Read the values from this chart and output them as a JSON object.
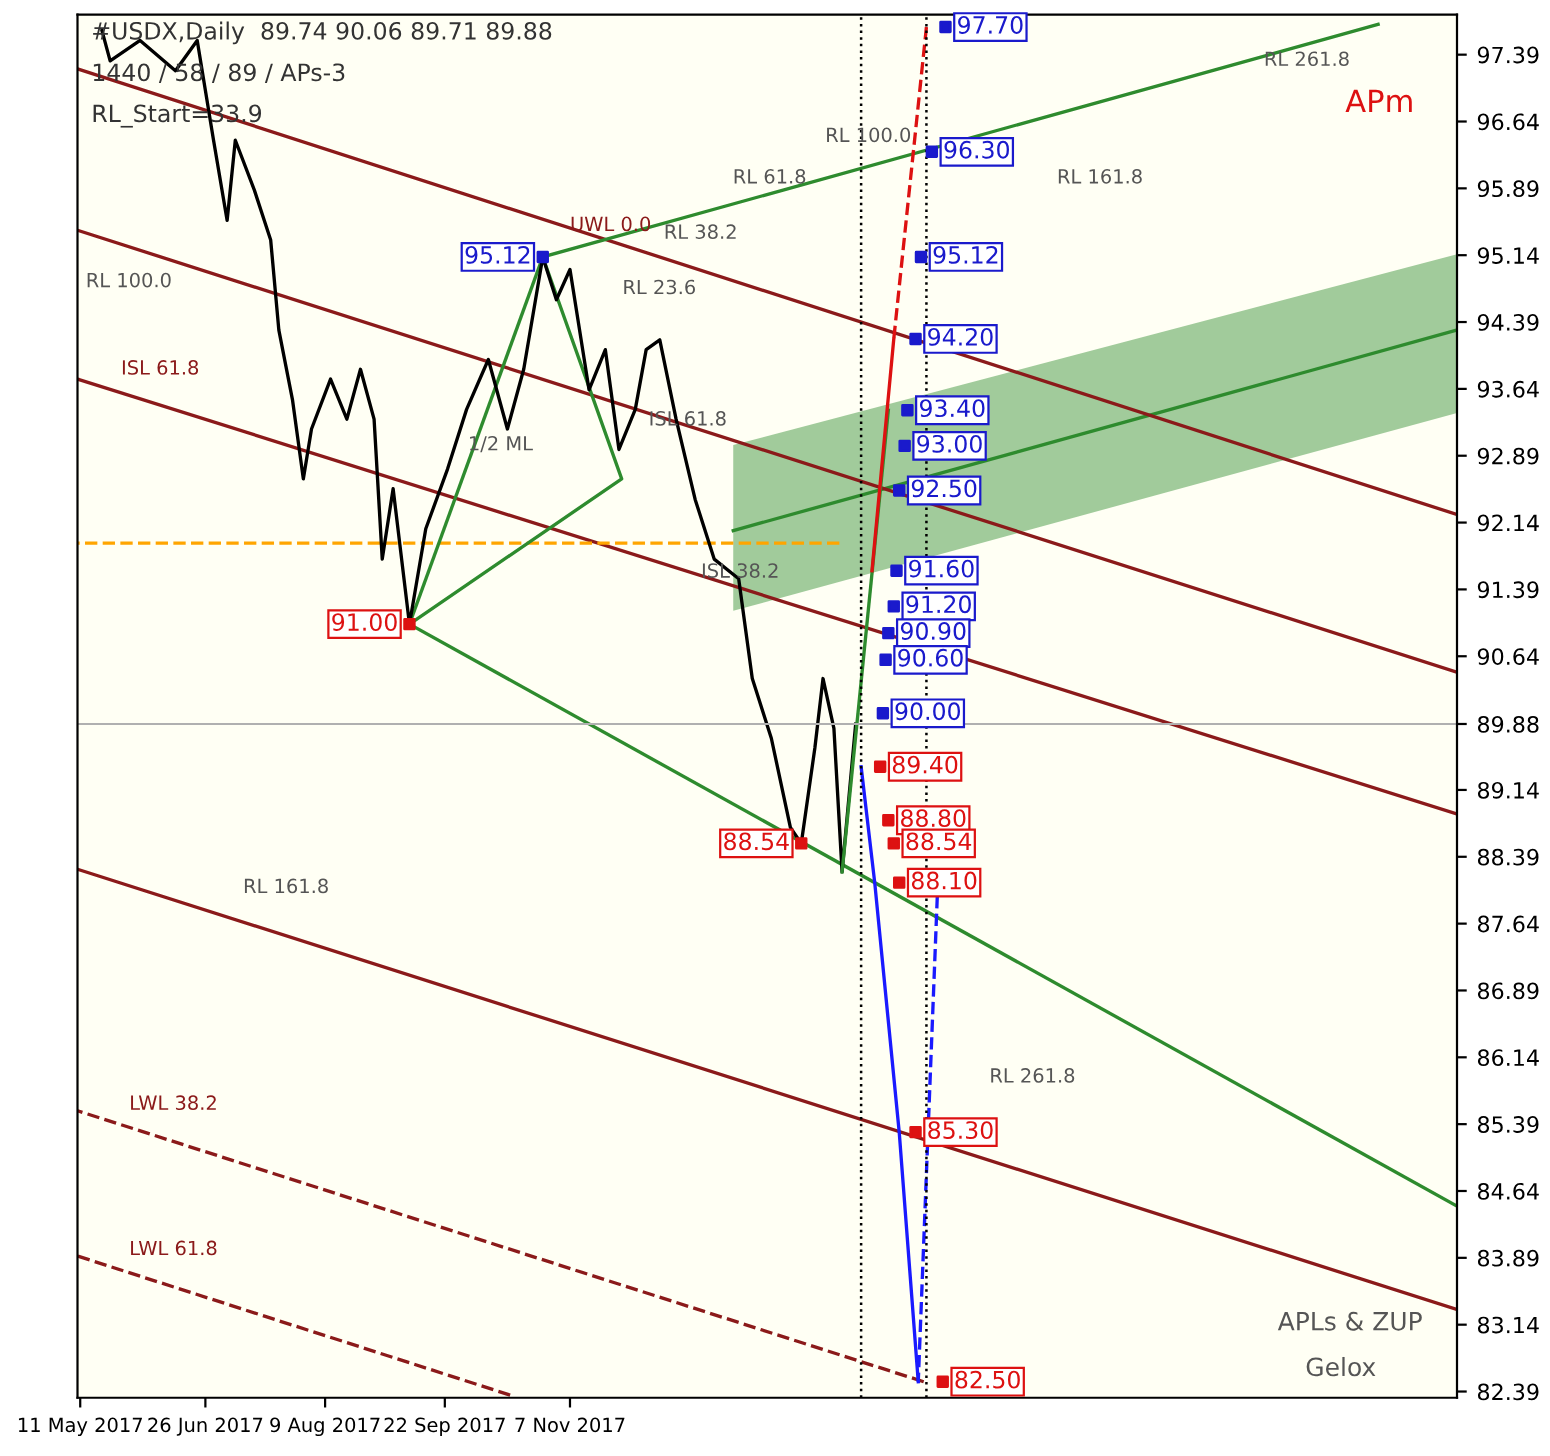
{
  "chart_data": {
    "type": "line",
    "title": "#USDX,Daily  89.74 90.06 89.71 89.88",
    "xlim": [
      "2017-05-10",
      "2018-09-29"
    ],
    "xticks": [
      {
        "value": "2017-05-11",
        "label": "11 May 2017"
      },
      {
        "value": "2017-06-26",
        "label": "26 Jun 2017"
      },
      {
        "value": "2017-08-09",
        "label": "9 Aug 2017"
      },
      {
        "value": "2017-09-22",
        "label": "22 Sep 2017"
      },
      {
        "value": "2017-11-07",
        "label": "7 Nov 2017"
      }
    ],
    "ylim": [
      82.32,
      97.84
    ],
    "yticks": [
      82.39,
      83.14,
      83.89,
      84.64,
      85.39,
      86.14,
      86.89,
      87.64,
      88.39,
      89.14,
      89.88,
      90.64,
      91.39,
      92.14,
      92.89,
      93.64,
      94.39,
      95.14,
      95.89,
      96.64,
      97.39
    ],
    "grid": false,
    "legend": false,
    "series": [
      {
        "color": "#2e8b2e",
        "x": [
          "2018-01-06",
          "2018-09-29"
        ],
        "values": [
          92.05,
          94.3
        ],
        "lower": [
          91.15,
          93.37
        ],
        "upper": [
          93.01,
          95.15
        ]
      },
      {
        "type": "line",
        "color": "#8b1a1a",
        "line_style": "solid",
        "x": [
          "2017-05-10",
          "2018-09-29"
        ],
        "values": [
          97.23,
          92.23
        ]
      },
      {
        "type": "line",
        "color": "#8b1a1a",
        "line_style": "solid",
        "x": [
          "2017-05-10",
          "2018-09-29"
        ],
        "values": [
          95.42,
          90.46
        ]
      },
      {
        "type": "line",
        "color": "#8b1a1a",
        "line_style": "solid",
        "x": [
          "2017-05-10",
          "2018-09-29"
        ],
        "values": [
          93.75,
          88.87
        ]
      },
      {
        "type": "line",
        "color": "#8b1a1a",
        "line_style": "solid",
        "x": [
          "2017-05-10",
          "2018-09-29"
        ],
        "values": [
          88.25,
          83.31
        ]
      },
      {
        "type": "line",
        "color": "#8b1a1a",
        "line_style": "dashed",
        "x": [
          "2017-05-10",
          "2018-03-17"
        ],
        "values": [
          85.54,
          82.5
        ]
      },
      {
        "type": "line",
        "color": "#8b1a1a",
        "line_style": "dashed",
        "x": [
          "2017-05-10",
          "2017-10-16"
        ],
        "values": [
          83.91,
          82.35
        ]
      },
      {
        "type": "line",
        "color": "#ffa500",
        "line_style": "dashed",
        "x": [
          "2017-05-10",
          "2018-02-14"
        ],
        "values": [
          91.91,
          91.91
        ]
      },
      {
        "type": "line",
        "color": "#2e8b2e",
        "line_style": "solid",
        "x": [
          "2017-09-09",
          "2018-09-29"
        ],
        "values": [
          91.0,
          84.47
        ]
      },
      {
        "type": "line",
        "color": "#2e8b2e",
        "line_style": "solid",
        "x": [
          "2017-10-28",
          "2018-08-31"
        ],
        "values": [
          95.12,
          97.73
        ]
      },
      {
        "type": "line",
        "color": "#2e8b2e",
        "line_style": "solid",
        "x": [
          "2017-09-09",
          "2017-10-28"
        ],
        "values": [
          91.0,
          95.12
        ]
      },
      {
        "type": "line",
        "color": "#2e8b2e",
        "line_style": "solid",
        "x": [
          "2017-10-28",
          "2017-11-26",
          "2017-09-09"
        ],
        "values": [
          95.12,
          92.63,
          91.0
        ]
      },
      {
        "type": "line",
        "color": "#000000",
        "line_style": "solid",
        "x": [
          "2017-05-19",
          "2017-05-22",
          "2017-06-02",
          "2017-06-15",
          "2017-06-23",
          "2017-06-29",
          "2017-07-04",
          "2017-07-07",
          "2017-07-14",
          "2017-07-20",
          "2017-07-23",
          "2017-07-28",
          "2017-08-01",
          "2017-08-04",
          "2017-08-11",
          "2017-08-17",
          "2017-08-22",
          "2017-08-27",
          "2017-08-30",
          "2017-09-03",
          "2017-09-09",
          "2017-09-15",
          "2017-09-23",
          "2017-09-30",
          "2017-10-08",
          "2017-10-15",
          "2017-10-21",
          "2017-10-28",
          "2017-11-02",
          "2017-11-07",
          "2017-11-14",
          "2017-11-20",
          "2017-11-25",
          "2017-12-01",
          "2017-12-05",
          "2017-12-10",
          "2017-12-16",
          "2017-12-23",
          "2017-12-30",
          "2018-01-08",
          "2018-01-13",
          "2018-01-20",
          "2018-01-27",
          "2018-01-31",
          "2018-02-05",
          "2018-02-08",
          "2018-02-12",
          "2018-02-15",
          "2018-02-20"
        ],
        "values": [
          97.66,
          97.32,
          97.55,
          97.21,
          97.55,
          96.43,
          95.53,
          96.43,
          95.87,
          95.31,
          94.3,
          93.52,
          92.63,
          93.19,
          93.75,
          93.3,
          93.86,
          93.3,
          91.73,
          92.52,
          91.0,
          92.07,
          92.74,
          93.41,
          93.97,
          93.19,
          93.86,
          95.12,
          94.64,
          94.98,
          93.63,
          94.08,
          92.96,
          93.41,
          94.08,
          94.19,
          93.3,
          92.4,
          91.73,
          91.51,
          90.39,
          89.72,
          88.72,
          88.54,
          89.61,
          90.39,
          89.83,
          88.22,
          89.88
        ]
      },
      {
        "type": "line",
        "color": "#2e8b2e",
        "line_style": "solid",
        "x": [
          "2018-02-15",
          "2018-03-04"
        ],
        "values": [
          88.22,
          93.4
        ]
      },
      {
        "type": "line",
        "color": "#dd1111",
        "line_style": "solid",
        "x": [
          "2018-02-26",
          "2018-03-06"
        ],
        "values": [
          91.6,
          94.2
        ]
      },
      {
        "type": "line",
        "color": "#dd1111",
        "line_style": "dashed",
        "x": [
          "2018-03-06",
          "2018-03-18"
        ],
        "values": [
          94.2,
          97.7
        ]
      },
      {
        "type": "line",
        "color": "#1a1aff",
        "line_style": "solid",
        "x": [
          "2018-02-22",
          "2018-02-27",
          "2018-03-08",
          "2018-03-15"
        ],
        "values": [
          89.4,
          88.1,
          85.3,
          82.5
        ]
      },
      {
        "type": "line",
        "color": "#1a1aff",
        "line_style": "dashed",
        "x": [
          "2018-03-15",
          "2018-03-22"
        ],
        "values": [
          82.5,
          87.95
        ]
      },
      {
        "type": "scatter",
        "marker": "square",
        "color": "#1a1acc",
        "x": [
          "2017-10-28",
          "2018-03-25",
          "2018-03-20",
          "2018-03-16",
          "2018-03-14",
          "2018-03-11",
          "2018-03-10",
          "2018-03-08",
          "2018-03-07",
          "2018-03-06",
          "2018-03-04",
          "2018-03-03",
          "2018-03-02"
        ],
        "values": [
          95.12,
          97.7,
          96.3,
          95.12,
          94.2,
          93.4,
          93.0,
          92.5,
          91.6,
          91.2,
          90.9,
          90.6,
          90.0
        ],
        "value_labels": [
          "95.12",
          "97.70",
          "96.30",
          "95.12",
          "94.20",
          "93.40",
          "93.00",
          "92.50",
          "91.60",
          "91.20",
          "90.90",
          "90.60",
          "90.00"
        ]
      },
      {
        "type": "scatter",
        "marker": "square",
        "color": "#dd1111",
        "x": [
          "2017-09-09",
          "2018-01-31",
          "2018-03-01",
          "2018-03-04",
          "2018-03-06",
          "2018-03-08",
          "2018-03-14",
          "2018-03-24"
        ],
        "values": [
          91.0,
          88.54,
          89.4,
          88.8,
          88.54,
          88.1,
          85.3,
          82.5
        ],
        "value_labels": [
          "91.00",
          "88.54",
          "89.40",
          "88.80",
          "88.54",
          "88.10",
          "85.30",
          "82.50"
        ]
      }
    ],
    "ref_lines": [
      {
        "axis": "x",
        "value": "2018-02-22",
        "color": "#000000",
        "line_style": "dotted"
      },
      {
        "axis": "x",
        "value": "2018-03-18",
        "color": "#000000",
        "line_style": "dotted"
      },
      {
        "axis": "y",
        "value": 89.88,
        "color": "#b0b0b0",
        "line_style": "solid"
      }
    ],
    "annotations": [
      "1440 / 58 / 89 / APs-3",
      "RL_Start=33.9",
      "RL 100.0",
      "1/2 ML",
      "RL 23.6",
      "RL 38.2",
      "ISL 61.8",
      "RL 61.8",
      "ISL 38.2",
      "RL 100.0",
      "RL 161.8",
      "RL 261.8",
      "RL 261.8",
      "RL 161.8",
      "APm",
      "APLs & ZUP",
      "Gelox",
      {
        "text": "ISL 61.8",
        "x": "2017-05-26",
        "y": 93.6
      },
      {
        "text": "LWL 38.2",
        "x": "2017-05-29",
        "y": 85.35
      },
      {
        "text": "LWL 61.8",
        "x": "2017-05-29",
        "y": 83.72
      },
      {
        "text": "UWL 0.0",
        "x": "2017-11-07",
        "y": 95.21
      }
    ]
  }
}
